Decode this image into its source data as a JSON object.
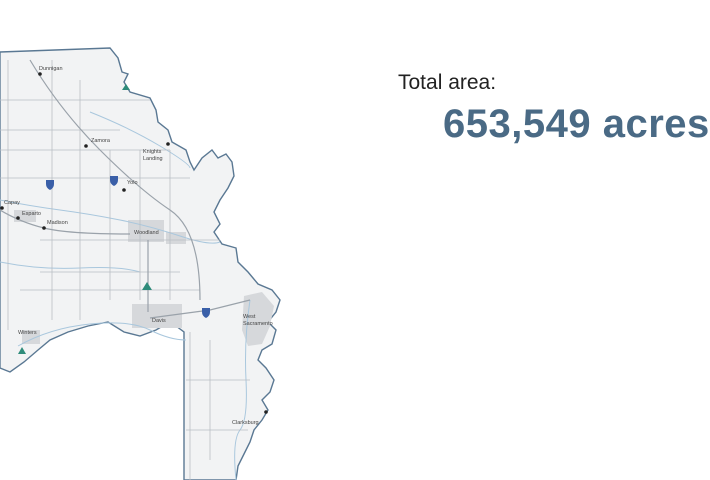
{
  "map": {
    "places": [
      {
        "name": "Dunnigan"
      },
      {
        "name": "Zamora"
      },
      {
        "name": "Knights\nLanding"
      },
      {
        "name": "Yolo"
      },
      {
        "name": "Capay"
      },
      {
        "name": "Esparto"
      },
      {
        "name": "Madison"
      },
      {
        "name": "Woodland"
      },
      {
        "name": "Davis"
      },
      {
        "name": "West\nSacramento"
      },
      {
        "name": "Winters"
      },
      {
        "name": "Clarksburg"
      }
    ],
    "colors": {
      "boundary": "#5a7893",
      "county_fill": "#f2f3f4",
      "road": "#b9bec4",
      "highway": "#9aa2aa",
      "river": "#a9c7dd",
      "urban": "#d6d8db",
      "park_icon": "#2e8b7a",
      "interstate_shield": "#3a5fa8"
    }
  },
  "summary": {
    "label": "Total area:",
    "value": "653,549 acres"
  }
}
